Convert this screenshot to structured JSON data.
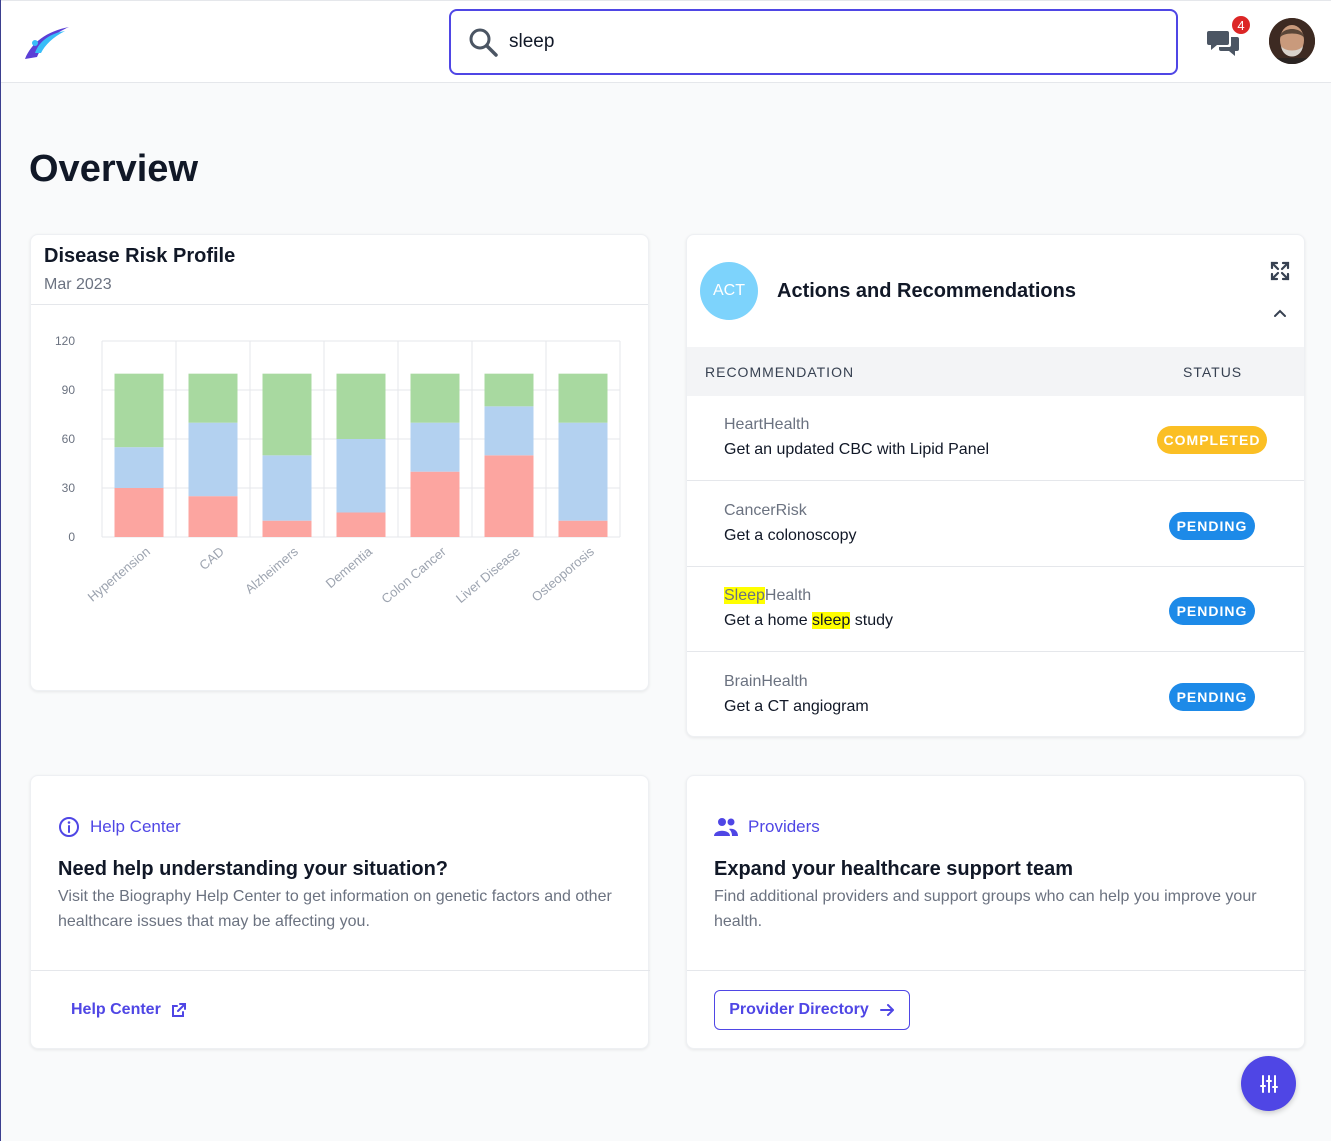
{
  "header": {
    "search_value": "sleep",
    "notification_count": "4"
  },
  "page_title": "Overview",
  "risk_card": {
    "title": "Disease Risk Profile",
    "date": "Mar 2023"
  },
  "chart_data": {
    "type": "bar",
    "stacked": true,
    "categories": [
      "Hypertension",
      "CAD",
      "Alzheimers",
      "Dementia",
      "Colon Cancer",
      "Liver Disease",
      "Osteoporosis"
    ],
    "series": [
      {
        "name": "",
        "color": "#fca5a0",
        "values": [
          30,
          25,
          10,
          15,
          40,
          50,
          10
        ]
      },
      {
        "name": "",
        "color": "#b3d1f0",
        "values": [
          25,
          45,
          40,
          45,
          30,
          30,
          60
        ]
      },
      {
        "name": "",
        "color": "#a8d9a0",
        "values": [
          45,
          30,
          50,
          40,
          30,
          20,
          30
        ]
      }
    ],
    "yticks": [
      "0",
      "30",
      "60",
      "90",
      "120"
    ],
    "ylim": [
      0,
      120
    ],
    "grid": true
  },
  "actions": {
    "badge": "ACT",
    "title": "Actions and Recommendations",
    "col_recommendation": "RECOMMENDATION",
    "col_status": "STATUS",
    "rows": [
      {
        "category": "HeartHealth",
        "desc": "Get an updated CBC with Lipid Panel",
        "status": "COMPLETED"
      },
      {
        "category": "CancerRisk",
        "desc": "Get a colonoscopy",
        "status": "PENDING"
      },
      {
        "category_hl": "Sleep",
        "category_rest": "Health",
        "desc_pre": "Get a home ",
        "desc_hl": "sleep",
        "desc_post": " study",
        "status": "PENDING"
      },
      {
        "category": "BrainHealth",
        "desc": "Get a CT angiogram",
        "status": "PENDING"
      }
    ]
  },
  "help": {
    "label": "Help Center",
    "heading": "Need help understanding your situation?",
    "text": "Visit the Biography Help Center to get information on genetic factors and other healthcare issues that may be affecting you.",
    "link": "Help Center"
  },
  "providers": {
    "label": "Providers",
    "heading": "Expand your healthcare support team",
    "text": "Find additional providers and support groups who can help you improve your health.",
    "button": "Provider Directory"
  },
  "icons": {
    "search": "search-icon",
    "chat": "chat-icon",
    "expand": "expand-icon",
    "collapse": "chevron-up-icon",
    "info": "info-icon",
    "users": "users-icon",
    "external": "external-link-icon",
    "arrow": "arrow-right-icon",
    "settings": "sliders-icon"
  },
  "colors": {
    "accent": "#4f46e5",
    "completed": "#fbbf24",
    "pending": "#1d8ae8",
    "highlight": "#ffff00"
  }
}
